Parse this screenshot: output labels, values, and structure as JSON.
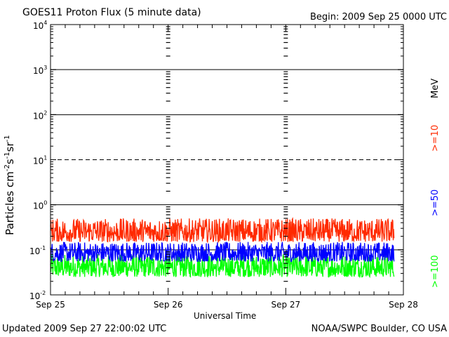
{
  "chart_data": {
    "type": "line",
    "title": "GOES11 Proton Flux (5 minute data)",
    "begin_label": "Begin: 2009 Sep 25 0000 UTC",
    "xlabel": "Universal Time",
    "ylabel_main": "Particles cm",
    "ylabel_sup1": "-2",
    "ylabel_mid1": "s",
    "ylabel_sup2": "-1",
    "ylabel_mid2": "sr",
    "ylabel_sup3": "-1",
    "x_ticks": [
      "Sep 25",
      "Sep 26",
      "Sep 27",
      "Sep 28"
    ],
    "x_range_days": [
      0,
      3
    ],
    "y_scale": "log",
    "ylim": [
      0.01,
      10000
    ],
    "y_ticks": [
      {
        "base": "10",
        "exp": "4"
      },
      {
        "base": "10",
        "exp": "3"
      },
      {
        "base": "10",
        "exp": "2"
      },
      {
        "base": "10",
        "exp": "1"
      },
      {
        "base": "10",
        "exp": "0"
      },
      {
        "base": "10",
        "exp": "-1"
      },
      {
        "base": "10",
        "exp": "-2"
      }
    ],
    "reference_lines": [
      1000,
      100,
      10,
      1,
      0.1
    ],
    "dashed_reference": 10,
    "series": [
      {
        "name": ">=10",
        "color": "#ff2a00",
        "level_min": 0.15,
        "level_max": 0.5,
        "typical": 0.2
      },
      {
        "name": ">=50",
        "color": "#0000ff",
        "level_min": 0.055,
        "level_max": 0.15,
        "typical": 0.1
      },
      {
        "name": ">=100",
        "color": "#00ff00",
        "level_min": 0.025,
        "level_max": 0.08,
        "typical": 0.04
      }
    ],
    "unit_label": "MeV"
  },
  "footer": {
    "updated": "Updated 2009 Sep 27 22:00:02 UTC",
    "credit": "NOAA/SWPC Boulder, CO USA"
  }
}
